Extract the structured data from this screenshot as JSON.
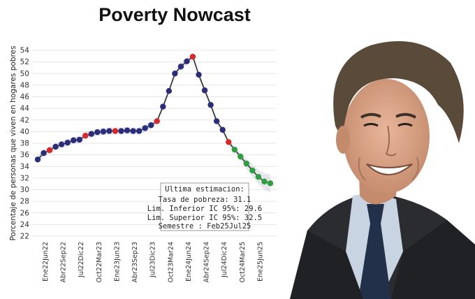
{
  "photo": {
    "icon": "smiling-man-in-suit-photo"
  },
  "chart_data": {
    "type": "line",
    "title": "Poverty Nowcast",
    "ylabel": "Porcentaje de personas que viven en hogares pobres",
    "xlabel": "",
    "ylim": [
      22,
      55
    ],
    "yticks": [
      22,
      24,
      26,
      28,
      30,
      32,
      34,
      36,
      38,
      40,
      42,
      44,
      46,
      48,
      50,
      52,
      54
    ],
    "xtick_labels": [
      "Ene22Jun22",
      "Abr22Sep22",
      "Jul22Dic22",
      "Oct22Mar23",
      "Ene23Jun23",
      "Abr23Sep23",
      "Jul23Dic23",
      "Oct23Mar24",
      "Ene24Jun24",
      "Abr24Sep24",
      "Jul24Dic24",
      "Oct24Mar25",
      "Ene25Jun25"
    ],
    "grid": true,
    "colors": {
      "estimate": "#2b2d7a",
      "official": "#d62a2a",
      "nowcast": "#2e9e3e",
      "band": "#c8c8d8",
      "line": "#111111"
    },
    "series": [
      {
        "values": [
          35.2,
          36.3,
          36.8,
          37.4,
          37.8,
          38.1,
          38.5,
          38.6,
          39.3,
          39.6,
          39.9,
          40.0,
          40.1,
          40.1,
          40.1,
          40.2,
          40.1,
          40.1,
          40.6,
          41.1,
          41.8,
          44.3,
          47.0,
          50.0,
          51.2,
          52.1,
          52.9,
          49.8,
          47.1,
          44.6,
          41.8,
          40.3,
          38.2,
          36.9,
          35.7,
          34.5,
          33.3,
          32.2,
          31.4,
          31.1
        ]
      }
    ],
    "point_types": [
      "e",
      "e",
      "o",
      "e",
      "e",
      "e",
      "e",
      "e",
      "o",
      "e",
      "e",
      "e",
      "e",
      "o",
      "e",
      "e",
      "e",
      "e",
      "e",
      "e",
      "o",
      "e",
      "e",
      "e",
      "e",
      "e",
      "o",
      "e",
      "e",
      "e",
      "e",
      "e",
      "o",
      "n",
      "n",
      "n",
      "n",
      "n",
      "n",
      "n"
    ],
    "tooltip": {
      "header": "Ultima estimacion:",
      "lines": [
        {
          "label": "Tasa de pobreza:",
          "value": "31.1"
        },
        {
          "label": "Lim. Inferior IC 95%:",
          "value": "29.6"
        },
        {
          "label": "Lim. Superior IC 95%:",
          "value": "32.5"
        },
        {
          "label": "Semestre :",
          "value": "Feb25Jul25"
        }
      ]
    }
  }
}
